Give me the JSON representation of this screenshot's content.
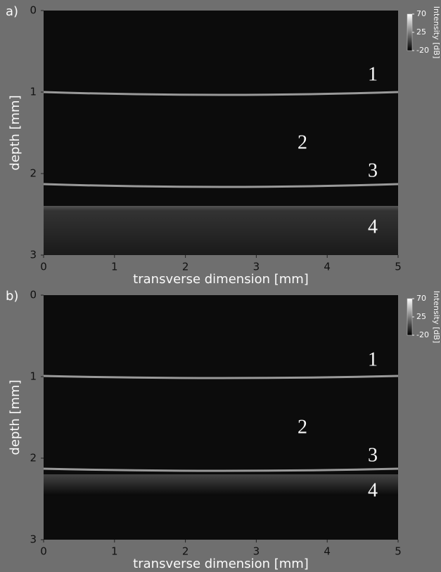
{
  "chart_data": [
    {
      "type": "image",
      "panel_label": "a)",
      "xlabel": "transverse dimension [mm]",
      "ylabel": "depth [mm]",
      "xlim": [
        0,
        5
      ],
      "xticks": [
        0,
        1,
        2,
        3,
        4,
        5
      ],
      "ylim": [
        3,
        0
      ],
      "yticks": [
        0,
        1,
        2,
        3
      ],
      "colorbar": {
        "label": "Intensity [dB]",
        "lim": [
          -20,
          70
        ],
        "ticks": [
          70,
          25,
          -20
        ]
      },
      "annotations": [
        "1",
        "2",
        "3",
        "4"
      ]
    },
    {
      "type": "image",
      "panel_label": "b)",
      "xlabel": "transverse dimension [mm]",
      "ylabel": "depth [mm]",
      "xlim": [
        0,
        5
      ],
      "xticks": [
        0,
        1,
        2,
        3,
        4,
        5
      ],
      "ylim": [
        3,
        0
      ],
      "yticks": [
        0,
        1,
        2,
        3
      ],
      "colorbar": {
        "label": "Intensity [dB]",
        "lim": [
          -20,
          70
        ],
        "ticks": [
          70,
          25,
          -20
        ]
      },
      "annotations": [
        "1",
        "2",
        "3",
        "4"
      ]
    }
  ]
}
